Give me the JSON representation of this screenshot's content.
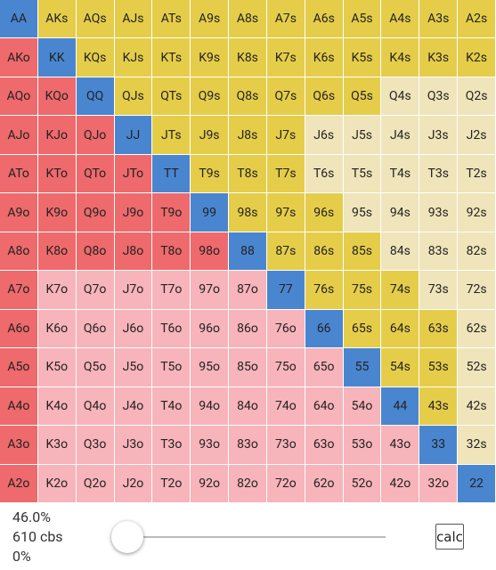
{
  "grid": {
    "colors": {
      "pair": "#4a86d0",
      "suited_on": "#e5cd4a",
      "suited_off": "#f0e4ba",
      "offsuit_on": "#ee6a6c",
      "offsuit_off": "#f7b4ba"
    },
    "rows": [
      [
        {
          "label": "AA",
          "selected": true
        },
        {
          "label": "AKs",
          "selected": true
        },
        {
          "label": "AQs",
          "selected": true
        },
        {
          "label": "AJs",
          "selected": true
        },
        {
          "label": "ATs",
          "selected": true
        },
        {
          "label": "A9s",
          "selected": true
        },
        {
          "label": "A8s",
          "selected": true
        },
        {
          "label": "A7s",
          "selected": true
        },
        {
          "label": "A6s",
          "selected": true
        },
        {
          "label": "A5s",
          "selected": true
        },
        {
          "label": "A4s",
          "selected": true
        },
        {
          "label": "A3s",
          "selected": true
        },
        {
          "label": "A2s",
          "selected": true
        }
      ],
      [
        {
          "label": "AKo",
          "selected": true
        },
        {
          "label": "KK",
          "selected": true
        },
        {
          "label": "KQs",
          "selected": true
        },
        {
          "label": "KJs",
          "selected": true
        },
        {
          "label": "KTs",
          "selected": true
        },
        {
          "label": "K9s",
          "selected": true
        },
        {
          "label": "K8s",
          "selected": true
        },
        {
          "label": "K7s",
          "selected": true
        },
        {
          "label": "K6s",
          "selected": true
        },
        {
          "label": "K5s",
          "selected": true
        },
        {
          "label": "K4s",
          "selected": true
        },
        {
          "label": "K3s",
          "selected": true
        },
        {
          "label": "K2s",
          "selected": true
        }
      ],
      [
        {
          "label": "AQo",
          "selected": true
        },
        {
          "label": "KQo",
          "selected": true
        },
        {
          "label": "QQ",
          "selected": true
        },
        {
          "label": "QJs",
          "selected": true
        },
        {
          "label": "QTs",
          "selected": true
        },
        {
          "label": "Q9s",
          "selected": true
        },
        {
          "label": "Q8s",
          "selected": true
        },
        {
          "label": "Q7s",
          "selected": true
        },
        {
          "label": "Q6s",
          "selected": true
        },
        {
          "label": "Q5s",
          "selected": true
        },
        {
          "label": "Q4s",
          "selected": false
        },
        {
          "label": "Q3s",
          "selected": false
        },
        {
          "label": "Q2s",
          "selected": false
        }
      ],
      [
        {
          "label": "AJo",
          "selected": true
        },
        {
          "label": "KJo",
          "selected": true
        },
        {
          "label": "QJo",
          "selected": true
        },
        {
          "label": "JJ",
          "selected": true
        },
        {
          "label": "JTs",
          "selected": true
        },
        {
          "label": "J9s",
          "selected": true
        },
        {
          "label": "J8s",
          "selected": true
        },
        {
          "label": "J7s",
          "selected": true
        },
        {
          "label": "J6s",
          "selected": false
        },
        {
          "label": "J5s",
          "selected": false
        },
        {
          "label": "J4s",
          "selected": false
        },
        {
          "label": "J3s",
          "selected": false
        },
        {
          "label": "J2s",
          "selected": false
        }
      ],
      [
        {
          "label": "ATo",
          "selected": true
        },
        {
          "label": "KTo",
          "selected": true
        },
        {
          "label": "QTo",
          "selected": true
        },
        {
          "label": "JTo",
          "selected": true
        },
        {
          "label": "TT",
          "selected": true
        },
        {
          "label": "T9s",
          "selected": true
        },
        {
          "label": "T8s",
          "selected": true
        },
        {
          "label": "T7s",
          "selected": true
        },
        {
          "label": "T6s",
          "selected": false
        },
        {
          "label": "T5s",
          "selected": false
        },
        {
          "label": "T4s",
          "selected": false
        },
        {
          "label": "T3s",
          "selected": false
        },
        {
          "label": "T2s",
          "selected": false
        }
      ],
      [
        {
          "label": "A9o",
          "selected": true
        },
        {
          "label": "K9o",
          "selected": true
        },
        {
          "label": "Q9o",
          "selected": true
        },
        {
          "label": "J9o",
          "selected": true
        },
        {
          "label": "T9o",
          "selected": true
        },
        {
          "label": "99",
          "selected": true
        },
        {
          "label": "98s",
          "selected": true
        },
        {
          "label": "97s",
          "selected": true
        },
        {
          "label": "96s",
          "selected": true
        },
        {
          "label": "95s",
          "selected": false
        },
        {
          "label": "94s",
          "selected": false
        },
        {
          "label": "93s",
          "selected": false
        },
        {
          "label": "92s",
          "selected": false
        }
      ],
      [
        {
          "label": "A8o",
          "selected": true
        },
        {
          "label": "K8o",
          "selected": true
        },
        {
          "label": "Q8o",
          "selected": true
        },
        {
          "label": "J8o",
          "selected": true
        },
        {
          "label": "T8o",
          "selected": true
        },
        {
          "label": "98o",
          "selected": true
        },
        {
          "label": "88",
          "selected": true
        },
        {
          "label": "87s",
          "selected": true
        },
        {
          "label": "86s",
          "selected": true
        },
        {
          "label": "85s",
          "selected": true
        },
        {
          "label": "84s",
          "selected": false
        },
        {
          "label": "83s",
          "selected": false
        },
        {
          "label": "82s",
          "selected": false
        }
      ],
      [
        {
          "label": "A7o",
          "selected": true
        },
        {
          "label": "K7o",
          "selected": false
        },
        {
          "label": "Q7o",
          "selected": false
        },
        {
          "label": "J7o",
          "selected": false
        },
        {
          "label": "T7o",
          "selected": false
        },
        {
          "label": "97o",
          "selected": false
        },
        {
          "label": "87o",
          "selected": false
        },
        {
          "label": "77",
          "selected": true
        },
        {
          "label": "76s",
          "selected": true
        },
        {
          "label": "75s",
          "selected": true
        },
        {
          "label": "74s",
          "selected": true
        },
        {
          "label": "73s",
          "selected": false
        },
        {
          "label": "72s",
          "selected": false
        }
      ],
      [
        {
          "label": "A6o",
          "selected": true
        },
        {
          "label": "K6o",
          "selected": false
        },
        {
          "label": "Q6o",
          "selected": false
        },
        {
          "label": "J6o",
          "selected": false
        },
        {
          "label": "T6o",
          "selected": false
        },
        {
          "label": "96o",
          "selected": false
        },
        {
          "label": "86o",
          "selected": false
        },
        {
          "label": "76o",
          "selected": false
        },
        {
          "label": "66",
          "selected": true
        },
        {
          "label": "65s",
          "selected": true
        },
        {
          "label": "64s",
          "selected": true
        },
        {
          "label": "63s",
          "selected": true
        },
        {
          "label": "62s",
          "selected": false
        }
      ],
      [
        {
          "label": "A5o",
          "selected": true
        },
        {
          "label": "K5o",
          "selected": false
        },
        {
          "label": "Q5o",
          "selected": false
        },
        {
          "label": "J5o",
          "selected": false
        },
        {
          "label": "T5o",
          "selected": false
        },
        {
          "label": "95o",
          "selected": false
        },
        {
          "label": "85o",
          "selected": false
        },
        {
          "label": "75o",
          "selected": false
        },
        {
          "label": "65o",
          "selected": false
        },
        {
          "label": "55",
          "selected": true
        },
        {
          "label": "54s",
          "selected": true
        },
        {
          "label": "53s",
          "selected": true
        },
        {
          "label": "52s",
          "selected": false
        }
      ],
      [
        {
          "label": "A4o",
          "selected": true
        },
        {
          "label": "K4o",
          "selected": false
        },
        {
          "label": "Q4o",
          "selected": false
        },
        {
          "label": "J4o",
          "selected": false
        },
        {
          "label": "T4o",
          "selected": false
        },
        {
          "label": "94o",
          "selected": false
        },
        {
          "label": "84o",
          "selected": false
        },
        {
          "label": "74o",
          "selected": false
        },
        {
          "label": "64o",
          "selected": false
        },
        {
          "label": "54o",
          "selected": false
        },
        {
          "label": "44",
          "selected": true
        },
        {
          "label": "43s",
          "selected": true
        },
        {
          "label": "42s",
          "selected": false
        }
      ],
      [
        {
          "label": "A3o",
          "selected": true
        },
        {
          "label": "K3o",
          "selected": false
        },
        {
          "label": "Q3o",
          "selected": false
        },
        {
          "label": "J3o",
          "selected": false
        },
        {
          "label": "T3o",
          "selected": false
        },
        {
          "label": "93o",
          "selected": false
        },
        {
          "label": "83o",
          "selected": false
        },
        {
          "label": "73o",
          "selected": false
        },
        {
          "label": "63o",
          "selected": false
        },
        {
          "label": "53o",
          "selected": false
        },
        {
          "label": "43o",
          "selected": false
        },
        {
          "label": "33",
          "selected": true
        },
        {
          "label": "32s",
          "selected": false
        }
      ],
      [
        {
          "label": "A2o",
          "selected": true
        },
        {
          "label": "K2o",
          "selected": false
        },
        {
          "label": "Q2o",
          "selected": false
        },
        {
          "label": "J2o",
          "selected": false
        },
        {
          "label": "T2o",
          "selected": false
        },
        {
          "label": "92o",
          "selected": false
        },
        {
          "label": "82o",
          "selected": false
        },
        {
          "label": "72o",
          "selected": false
        },
        {
          "label": "62o",
          "selected": false
        },
        {
          "label": "52o",
          "selected": false
        },
        {
          "label": "42o",
          "selected": false
        },
        {
          "label": "32o",
          "selected": false
        },
        {
          "label": "22",
          "selected": true
        }
      ]
    ]
  },
  "footer": {
    "percent": "46.0%",
    "combos": "610 cbs",
    "slider_value": "0%",
    "button": "calc"
  }
}
